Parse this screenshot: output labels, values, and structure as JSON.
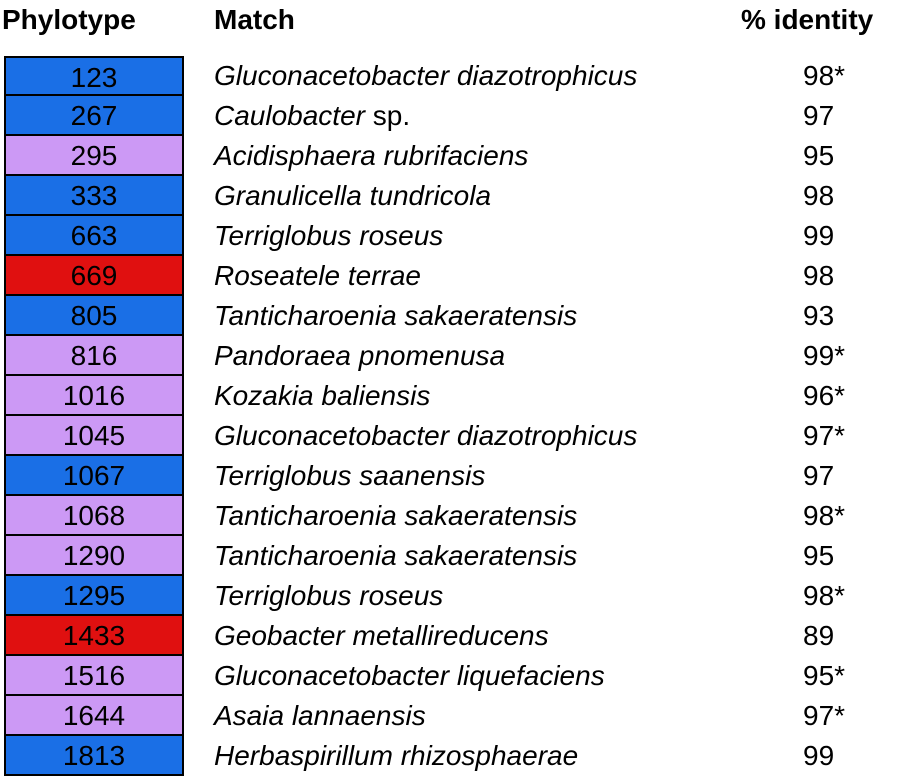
{
  "headers": {
    "phylotype": "Phylotype",
    "match": "Match",
    "identity": "% identity"
  },
  "colors": {
    "blue": "#1a6fe6",
    "purple": "#cc99f5",
    "red": "#e01010"
  },
  "rows": [
    {
      "phylotype": "123",
      "color": "blue",
      "match_italic": "Gluconacetobacter diazotrophicus",
      "match_plain": "",
      "identity": "98*"
    },
    {
      "phylotype": "267",
      "color": "blue",
      "match_italic": "Caulobacter",
      "match_plain": " sp.",
      "identity": "97"
    },
    {
      "phylotype": "295",
      "color": "purple",
      "match_italic": "Acidisphaera rubrifaciens",
      "match_plain": "",
      "identity": "95"
    },
    {
      "phylotype": "333",
      "color": "blue",
      "match_italic": "Granulicella tundricola",
      "match_plain": "",
      "identity": "98"
    },
    {
      "phylotype": "663",
      "color": "blue",
      "match_italic": "Terriglobus roseus",
      "match_plain": "",
      "identity": "99"
    },
    {
      "phylotype": "669",
      "color": "red",
      "match_italic": "Roseatele terrae",
      "match_plain": "",
      "identity": "98"
    },
    {
      "phylotype": "805",
      "color": "blue",
      "match_italic": "Tanticharoenia sakaeratensis",
      "match_plain": "",
      "identity": "93"
    },
    {
      "phylotype": "816",
      "color": "purple",
      "match_italic": "Pandoraea pnomenusa",
      "match_plain": "",
      "identity": "99*"
    },
    {
      "phylotype": "1016",
      "color": "purple",
      "match_italic": "Kozakia baliensis",
      "match_plain": "",
      "identity": "96*"
    },
    {
      "phylotype": "1045",
      "color": "purple",
      "match_italic": "Gluconacetobacter diazotrophicus",
      "match_plain": "",
      "identity": "97*"
    },
    {
      "phylotype": "1067",
      "color": "blue",
      "match_italic": "Terriglobus saanensis",
      "match_plain": "",
      "identity": "97"
    },
    {
      "phylotype": "1068",
      "color": "purple",
      "match_italic": "Tanticharoenia sakaeratensis",
      "match_plain": "",
      "identity": "98*"
    },
    {
      "phylotype": "1290",
      "color": "purple",
      "match_italic": "Tanticharoenia sakaeratensis",
      "match_plain": "",
      "identity": "95"
    },
    {
      "phylotype": "1295",
      "color": "blue",
      "match_italic": "Terriglobus roseus",
      "match_plain": "",
      "identity": "98*"
    },
    {
      "phylotype": "1433",
      "color": "red",
      "match_italic": "Geobacter metallireducens",
      "match_plain": "",
      "identity": "89"
    },
    {
      "phylotype": "1516",
      "color": "purple",
      "match_italic": "Gluconacetobacter liquefaciens",
      "match_plain": "",
      "identity": "95*"
    },
    {
      "phylotype": "1644",
      "color": "purple",
      "match_italic": "Asaia lannaensis",
      "match_plain": "",
      "identity": "97*"
    },
    {
      "phylotype": "1813",
      "color": "blue",
      "match_italic": "Herbaspirillum rhizosphaerae",
      "match_plain": "",
      "identity": "99"
    }
  ]
}
